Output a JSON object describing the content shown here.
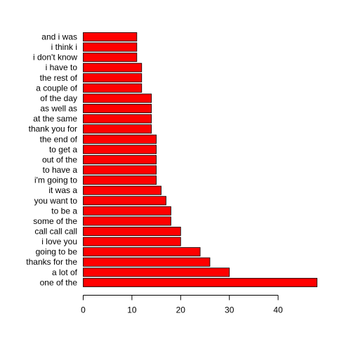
{
  "chart_data": {
    "type": "bar",
    "orientation": "horizontal",
    "title": "",
    "xlabel": "",
    "ylabel": "",
    "xlim": [
      0,
      48
    ],
    "x_ticks": [
      0,
      10,
      20,
      30,
      40
    ],
    "bar_color": "#ff0000",
    "bar_border_color": "#000000",
    "categories": [
      "one of the",
      "a lot of",
      "thanks for the",
      "going to be",
      "i love you",
      "call call call",
      "some of the",
      "to be a",
      "you want to",
      "it was a",
      "i'm going to",
      "to have a",
      "out of the",
      "to get a",
      "the end of",
      "thank you for",
      "at the same",
      "as well as",
      "of the day",
      "a couple of",
      "the rest of",
      "i have to",
      "i don't know",
      "i think i",
      "and i was"
    ],
    "values": [
      48,
      30,
      26,
      24,
      20,
      20,
      18,
      18,
      17,
      16,
      15,
      15,
      15,
      15,
      15,
      14,
      14,
      14,
      14,
      12,
      12,
      12,
      11,
      11,
      11
    ]
  }
}
